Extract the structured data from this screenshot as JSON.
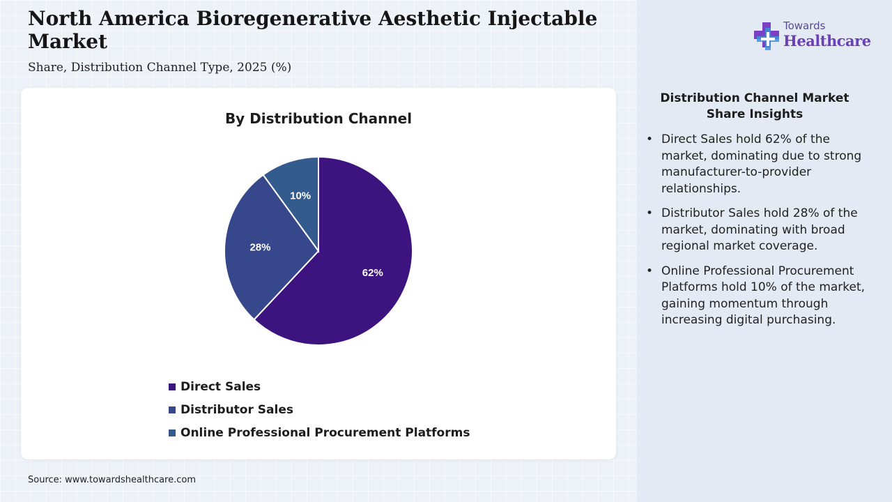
{
  "header": {
    "title": "North America Bioregenerative Aesthetic Injectable Market",
    "subtitle": "Share, Distribution Channel Type, 2025 (%)"
  },
  "logo": {
    "line1": "Towards",
    "line2": "Healthcare"
  },
  "chart_data": {
    "type": "pie",
    "title": "By Distribution Channel",
    "categories": [
      "Direct Sales",
      "Distributor Sales",
      "Online Professional Procurement Platforms"
    ],
    "values": [
      62,
      28,
      10
    ],
    "labels": [
      "62%",
      "28%",
      "10%"
    ],
    "colors": [
      "#3d1380",
      "#37478c",
      "#345b8e"
    ],
    "legend_position": "bottom"
  },
  "insights": {
    "title": "Distribution Channel Market Share Insights",
    "bullet": "•",
    "items": [
      "Direct Sales hold 62% of the market, dominating due to strong manufacturer-to-provider relationships.",
      "Distributor Sales hold 28% of the market, dominating with broad regional market coverage.",
      "Online Professional Procurement Platforms hold 10% of the market, gaining momentum through increasing digital purchasing."
    ]
  },
  "source": "Source: www.towardshealthcare.com"
}
